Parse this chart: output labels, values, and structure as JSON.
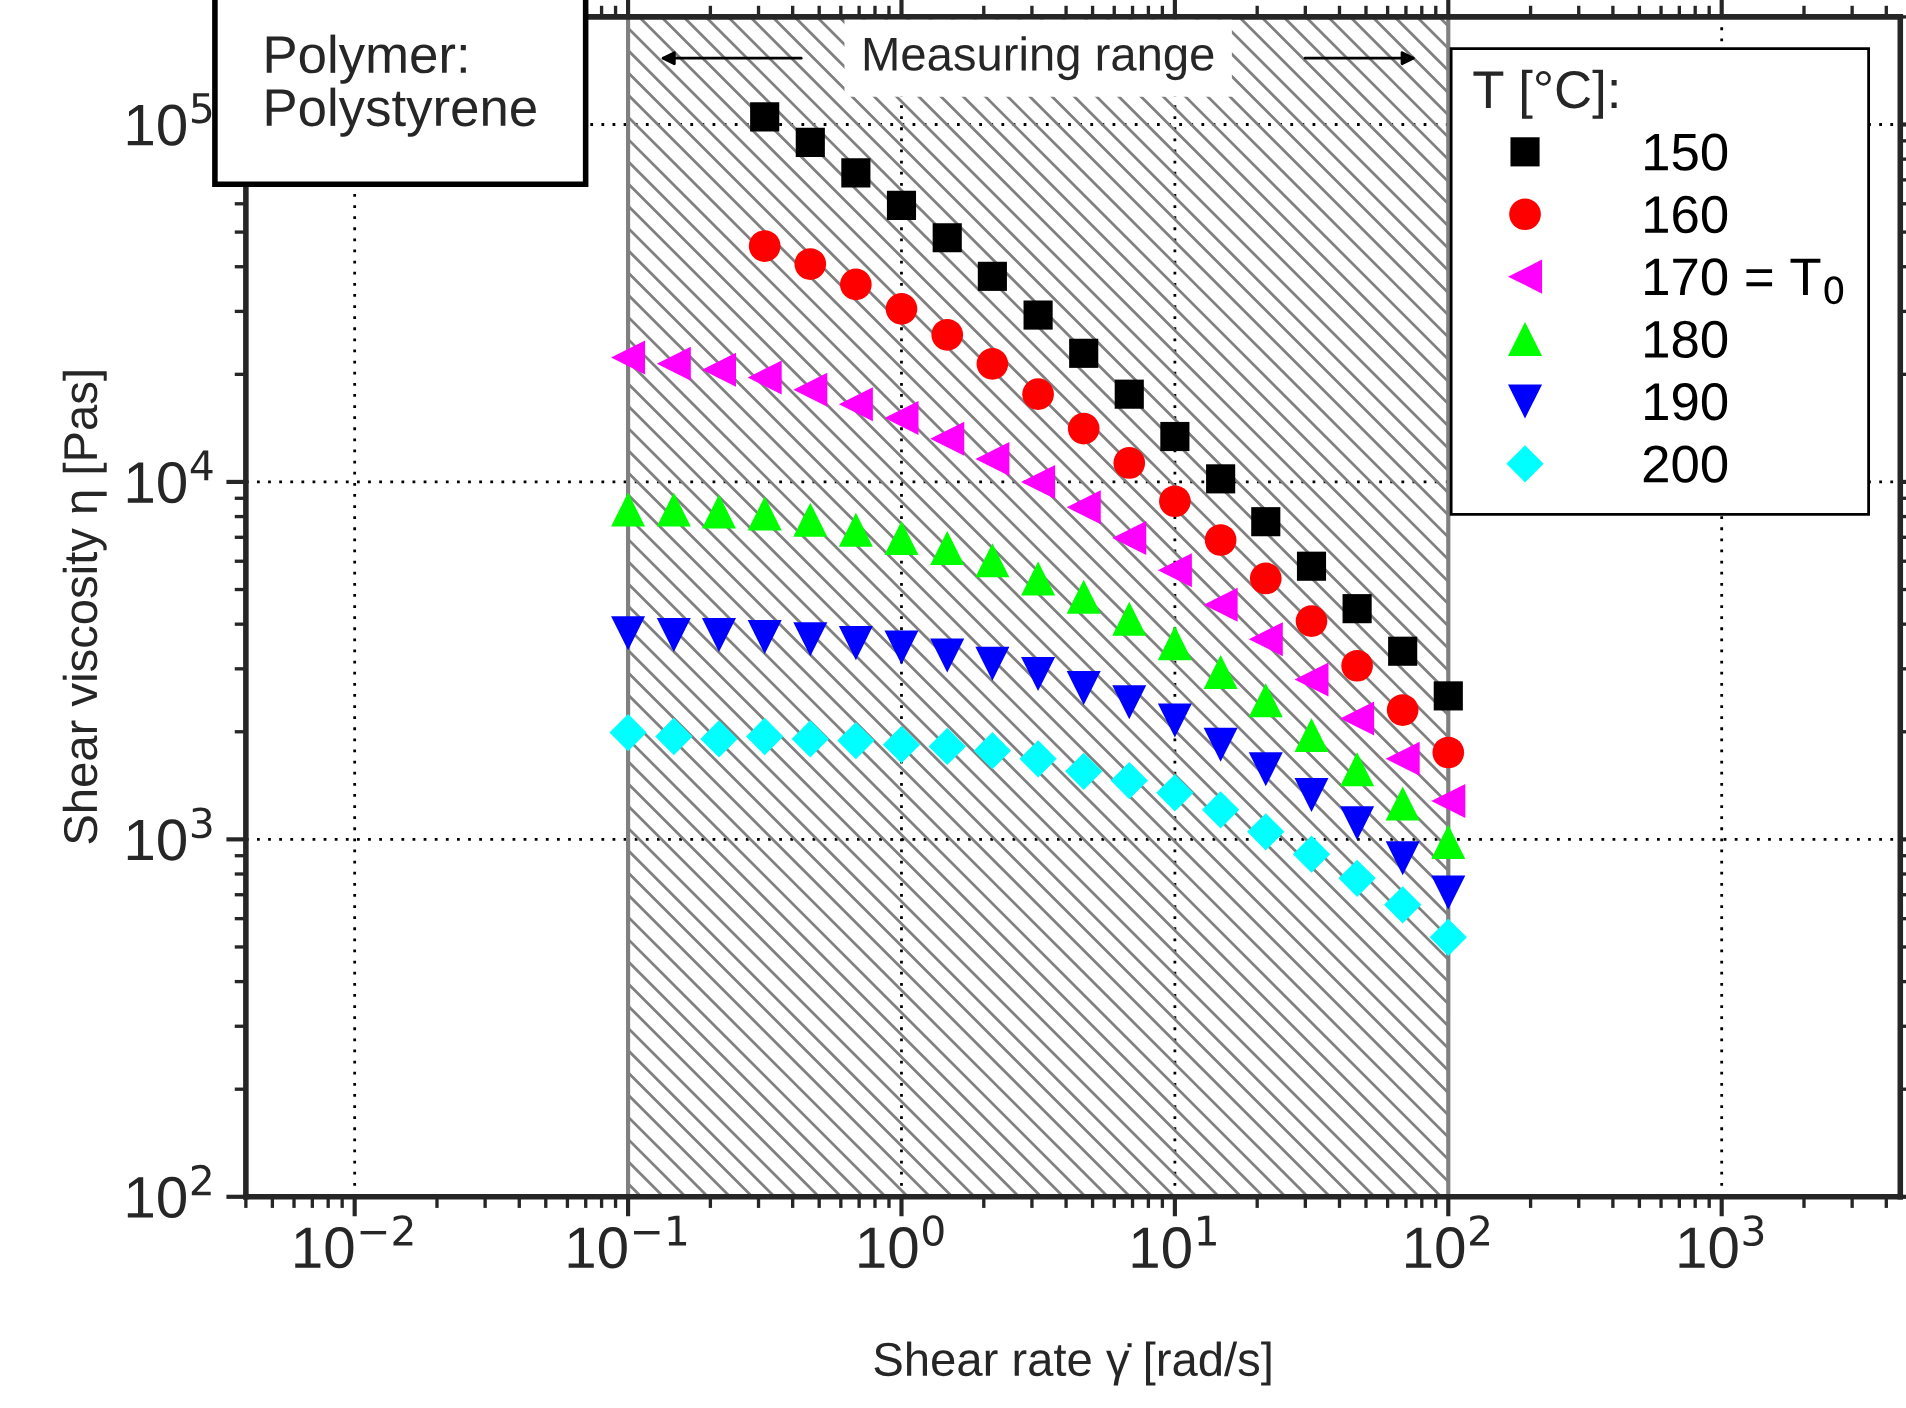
{
  "chart_data": {
    "type": "scatter",
    "xlabel": "Shear rate γ̇ [rad/s]",
    "ylabel": "Shear viscosity η [Pas]",
    "legend_title": "T [°C]:",
    "log": "xy",
    "grid": true,
    "legend": "top right",
    "xlim": [
      0.004,
      4500
    ],
    "ylim": [
      100,
      200000
    ],
    "xticks": [
      {
        "value": 0.01,
        "label": "10$^{−2}$"
      },
      {
        "value": 0.1,
        "label": "10$^{−1}$"
      },
      {
        "value": 1,
        "label": "10$^{0}$"
      },
      {
        "value": 10,
        "label": "10$^{1}$"
      },
      {
        "value": 100,
        "label": "10$^{2}$"
      },
      {
        "value": 1000,
        "label": "10$^{3}$"
      }
    ],
    "yticks": [
      {
        "value": 100,
        "label": "10$^{2}$"
      },
      {
        "value": 1000,
        "label": "10$^{3}$"
      },
      {
        "value": 10000,
        "label": "10$^{4}$"
      },
      {
        "value": 100000,
        "label": "10$^{5}$"
      }
    ],
    "bands": [
      {
        "axis": "x",
        "from": 0.1,
        "to": 100,
        "label": "Measuring range",
        "color": "#808080"
      }
    ],
    "annotations": [
      "Polymer:\nPolystyrene"
    ],
    "series": [
      {
        "name": "150",
        "color": "#000000",
        "marker": "square",
        "x": [
          0.316,
          0.464,
          0.681,
          1,
          1.47,
          2.15,
          3.16,
          4.64,
          6.81,
          10,
          14.7,
          21.5,
          31.6,
          46.4,
          68.1,
          100
        ],
        "values": [
          105000,
          89100,
          73200,
          59400,
          48200,
          37600,
          29300,
          22900,
          17600,
          13400,
          10200,
          7740,
          5810,
          4420,
          3360,
          2520
        ]
      },
      {
        "name": "160",
        "color": "#ff0000",
        "marker": "circle",
        "x": [
          0.316,
          0.464,
          0.681,
          1,
          1.47,
          2.15,
          3.16,
          4.64,
          6.81,
          10,
          14.7,
          21.5,
          31.6,
          46.4,
          68.1,
          100
        ],
        "values": [
          45700,
          40700,
          35700,
          30500,
          25800,
          21400,
          17600,
          14100,
          11300,
          8830,
          6880,
          5370,
          4080,
          3060,
          2300,
          1750
        ]
      },
      {
        "name": "170 = T$_{0}$",
        "color": "#ff00ff",
        "marker": "triangle-left",
        "x": [
          0.1,
          0.147,
          0.215,
          0.316,
          0.464,
          0.681,
          1,
          1.47,
          2.15,
          3.16,
          4.64,
          6.81,
          10,
          14.7,
          21.5,
          31.6,
          46.4,
          68.1,
          100
        ],
        "values": [
          22300,
          21400,
          20600,
          19600,
          18100,
          16500,
          15100,
          13200,
          11600,
          10000,
          8490,
          6970,
          5660,
          4530,
          3630,
          2800,
          2180,
          1680,
          1280
        ]
      },
      {
        "name": "180",
        "color": "#00ff00",
        "marker": "triangle",
        "x": [
          0.1,
          0.147,
          0.215,
          0.316,
          0.464,
          0.681,
          1,
          1.47,
          2.15,
          3.16,
          4.64,
          6.81,
          10,
          14.7,
          21.5,
          31.6,
          46.4,
          68.1,
          100
        ],
        "values": [
          8370,
          8370,
          8260,
          8160,
          7840,
          7350,
          6970,
          6530,
          6040,
          5370,
          4770,
          4140,
          3540,
          2940,
          2450,
          1960,
          1570,
          1260,
          984
        ]
      },
      {
        "name": "190",
        "color": "#0000ff",
        "marker": "triangle-down",
        "x": [
          0.1,
          0.147,
          0.215,
          0.316,
          0.464,
          0.681,
          1,
          1.47,
          2.15,
          3.16,
          4.64,
          6.81,
          10,
          14.7,
          21.5,
          31.6,
          46.4,
          68.1,
          100
        ],
        "values": [
          3770,
          3730,
          3730,
          3680,
          3630,
          3540,
          3440,
          3270,
          3100,
          2900,
          2650,
          2420,
          2150,
          1840,
          1570,
          1330,
          1110,
          885,
          710
        ]
      },
      {
        "name": "200",
        "color": "#00ffff",
        "marker": "diamond",
        "x": [
          0.1,
          0.147,
          0.215,
          0.316,
          0.464,
          0.681,
          1,
          1.47,
          2.15,
          3.16,
          4.64,
          6.81,
          10,
          14.7,
          21.5,
          31.6,
          46.4,
          68.1,
          100
        ],
        "values": [
          1990,
          1940,
          1910,
          1940,
          1910,
          1890,
          1840,
          1820,
          1770,
          1680,
          1550,
          1460,
          1350,
          1210,
          1050,
          909,
          778,
          656,
          532
        ]
      }
    ]
  }
}
